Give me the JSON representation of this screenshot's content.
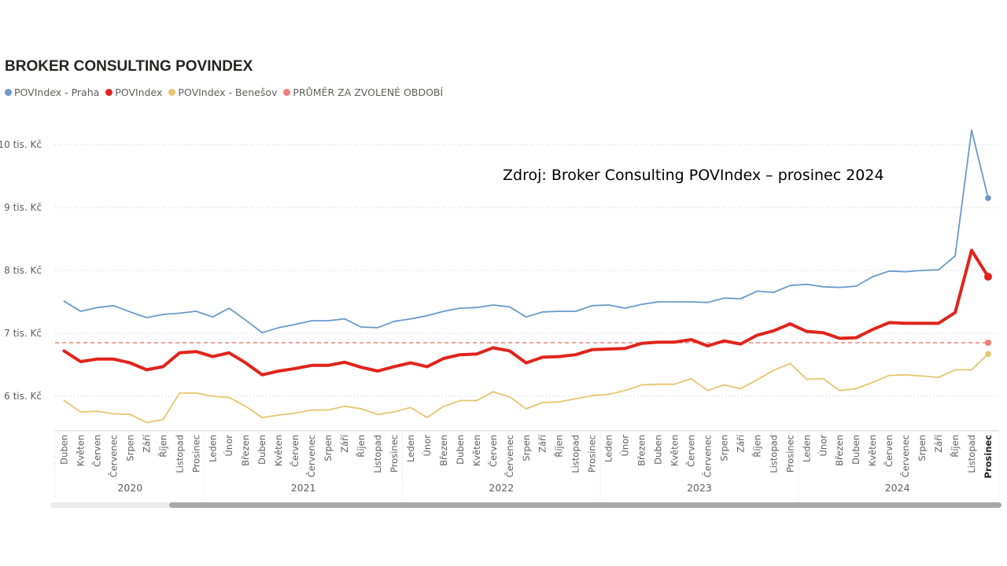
{
  "title": "BROKER CONSULTING POVINDEX",
  "source_note": "Zdroj: Broker Consulting POVIndex – prosinec 2024",
  "legend": [
    {
      "label": "POVIndex - Praha",
      "color": "#6a99c9"
    },
    {
      "label": "POVIndex",
      "color": "#e0241c"
    },
    {
      "label": "POVIndex - Benešov",
      "color": "#e6c56f"
    },
    {
      "label": "PRŮMĚR ZA ZVOLENÉ OBDOBÍ",
      "color": "#ef8078"
    }
  ],
  "chart_data": {
    "type": "line",
    "title": "BROKER CONSULTING POVINDEX",
    "xlabel": "",
    "ylabel": "",
    "ylim": [
      5.45,
      10.55
    ],
    "y_ticks": [
      {
        "value": 6,
        "label": "6 tis. Kč"
      },
      {
        "value": 7,
        "label": "7 tis. Kč"
      },
      {
        "value": 8,
        "label": "8 tis. Kč"
      },
      {
        "value": 9,
        "label": "9 tis. Kč"
      },
      {
        "value": 10,
        "label": "10 tis. Kč"
      }
    ],
    "grid": true,
    "legend_position": "top-left",
    "categories": [
      "Duben",
      "Květen",
      "Červen",
      "Červenec",
      "Srpen",
      "Září",
      "Říjen",
      "Listopad",
      "Prosinec",
      "Leden",
      "Únor",
      "Březen",
      "Duben",
      "Květen",
      "Červen",
      "Červenec",
      "Srpen",
      "Září",
      "Říjen",
      "Listopad",
      "Prosinec",
      "Leden",
      "Únor",
      "Březen",
      "Duben",
      "Květen",
      "Červen",
      "Červenec",
      "Srpen",
      "Září",
      "Říjen",
      "Listopad",
      "Prosinec",
      "Leden",
      "Únor",
      "Březen",
      "Duben",
      "Květen",
      "Červen",
      "Červenec",
      "Srpen",
      "Září",
      "Říjen",
      "Listopad",
      "Prosinec",
      "Leden",
      "Únor",
      "Březen",
      "Duben",
      "Květen",
      "Červen",
      "Červenec",
      "Srpen",
      "Září",
      "Říjen",
      "Listopad",
      "Prosinec"
    ],
    "year_groups": [
      {
        "label": "2020",
        "start": 0,
        "count": 9
      },
      {
        "label": "2021",
        "start": 9,
        "count": 12
      },
      {
        "label": "2022",
        "start": 21,
        "count": 12
      },
      {
        "label": "2023",
        "start": 33,
        "count": 12
      },
      {
        "label": "2024",
        "start": 45,
        "count": 12
      }
    ],
    "series": [
      {
        "name": "POVIndex - Praha",
        "color": "#6a99c9",
        "values": [
          7.51,
          7.35,
          7.41,
          7.44,
          7.34,
          7.25,
          7.3,
          7.32,
          7.35,
          7.26,
          7.4,
          7.21,
          7.01,
          7.09,
          7.14,
          7.2,
          7.2,
          7.23,
          7.1,
          7.09,
          7.19,
          7.23,
          7.28,
          7.35,
          7.4,
          7.41,
          7.45,
          7.42,
          7.26,
          7.34,
          7.35,
          7.35,
          7.44,
          7.45,
          7.4,
          7.46,
          7.5,
          7.5,
          7.5,
          7.49,
          7.56,
          7.55,
          7.67,
          7.65,
          7.76,
          7.78,
          7.74,
          7.73,
          7.75,
          7.9,
          7.99,
          7.98,
          8.0,
          8.01,
          8.23,
          10.23,
          9.15
        ]
      },
      {
        "name": "POVIndex",
        "color": "#e0241c",
        "values": [
          6.72,
          6.55,
          6.59,
          6.59,
          6.53,
          6.42,
          6.47,
          6.69,
          6.71,
          6.63,
          6.69,
          6.53,
          6.34,
          6.4,
          6.44,
          6.49,
          6.49,
          6.54,
          6.46,
          6.4,
          6.47,
          6.53,
          6.47,
          6.6,
          6.66,
          6.67,
          6.77,
          6.72,
          6.53,
          6.62,
          6.63,
          6.66,
          6.74,
          6.75,
          6.76,
          6.84,
          6.86,
          6.86,
          6.9,
          6.8,
          6.88,
          6.83,
          6.97,
          7.04,
          7.15,
          7.03,
          7.01,
          6.92,
          6.93,
          7.06,
          7.17,
          7.16,
          7.16,
          7.16,
          7.33,
          8.32,
          7.9
        ]
      },
      {
        "name": "POVIndex - Benešov",
        "color": "#e6c56f",
        "values": [
          5.93,
          5.75,
          5.76,
          5.72,
          5.71,
          5.58,
          5.63,
          6.05,
          6.05,
          6.0,
          5.98,
          5.84,
          5.66,
          5.7,
          5.73,
          5.78,
          5.78,
          5.84,
          5.8,
          5.71,
          5.75,
          5.82,
          5.66,
          5.84,
          5.93,
          5.93,
          6.07,
          5.99,
          5.8,
          5.9,
          5.91,
          5.96,
          6.01,
          6.03,
          6.09,
          6.18,
          6.19,
          6.19,
          6.28,
          6.09,
          6.18,
          6.12,
          6.26,
          6.41,
          6.52,
          6.27,
          6.28,
          6.09,
          6.12,
          6.22,
          6.33,
          6.34,
          6.32,
          6.3,
          6.42,
          6.42,
          6.67
        ]
      }
    ],
    "average_line": {
      "name": "PRŮMĚR ZA ZVOLENÉ OBDOBÍ",
      "color": "#ef8078",
      "value": 6.85
    }
  },
  "scrollbar": {
    "visible_fraction": 0.875
  }
}
